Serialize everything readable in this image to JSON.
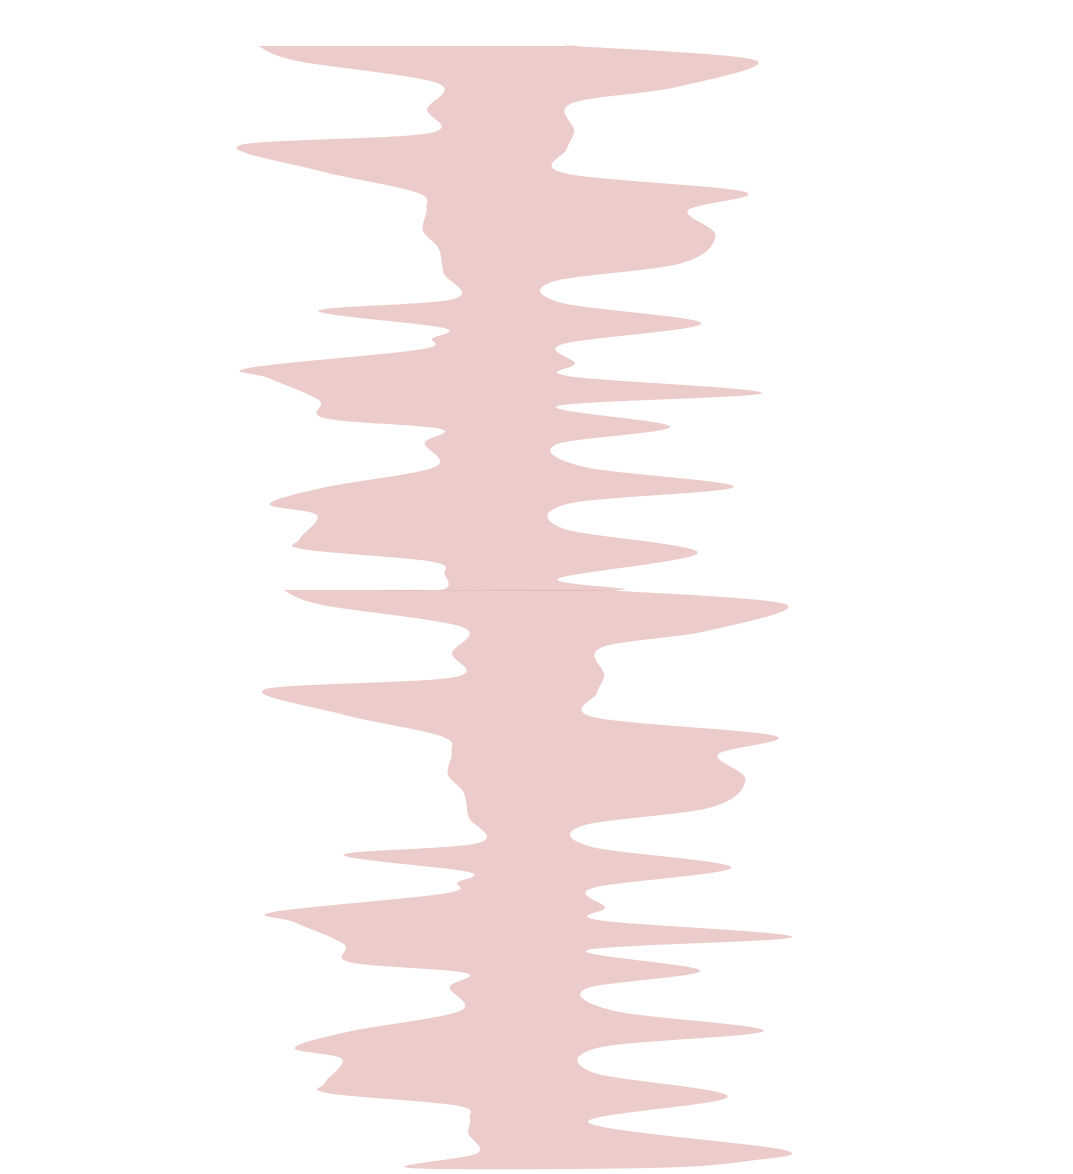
{
  "colors": {
    "background": "#ffffff",
    "shape_fill": "#ecccca",
    "overlap_fill": "#e1b0ae"
  },
  "shapes": [
    {
      "name": "wavy-ribbon-shape-upper",
      "seed": 7
    },
    {
      "name": "wavy-ribbon-shape-lower",
      "seed": 7
    }
  ]
}
